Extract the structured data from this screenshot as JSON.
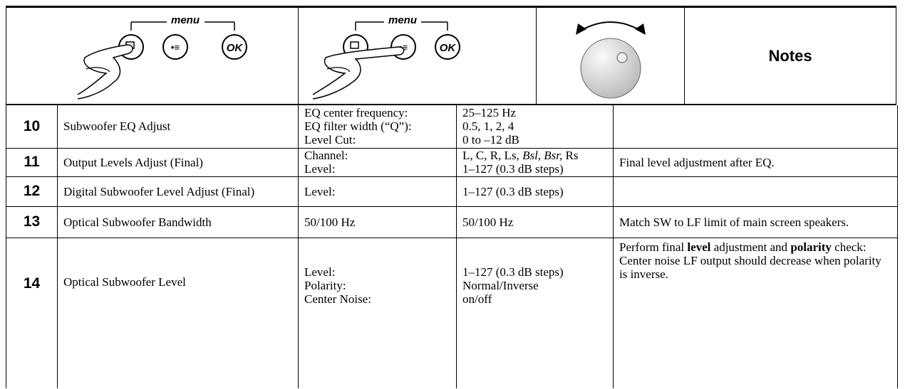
{
  "header": {
    "button_groups": [
      {
        "menu": "menu",
        "ok": "OK"
      },
      {
        "menu": "menu",
        "ok": "OK"
      }
    ],
    "notes": "Notes"
  },
  "rows": [
    {
      "step": 10,
      "name": "Subwoofer EQ Adjust",
      "parameters": [
        "EQ center frequency:",
        "EQ filter width (“Q”):",
        "Level Cut:"
      ],
      "values": [
        "25–125 Hz",
        "0.5, 1, 2, 4",
        "0 to –12 dB"
      ]
    },
    {
      "step": 11,
      "name": "Output Levels Adjust (Final)",
      "parameters": [
        "Channel:",
        "Level:"
      ],
      "values": [
        [
          "L, C, R, Ls, ",
          {
            "text": "Bsl, Bsr,",
            "style": "italic"
          },
          " Rs"
        ],
        "1–127 (0.3 dB steps)"
      ],
      "notes": "Final level adjustment after EQ."
    },
    {
      "step": 12,
      "name": "Digital Subwoofer Level Adjust (Final)",
      "parameters": [
        "Level:"
      ],
      "values": [
        "1–127 (0.3 dB steps)"
      ]
    },
    {
      "step": 13,
      "name": "Optical Subwoofer Bandwidth",
      "parameters": [
        "50/100 Hz"
      ],
      "values": [
        "50/100 Hz"
      ],
      "notes": "Match SW to LF limit of main screen speakers."
    },
    {
      "step": 14,
      "name": "Optical Subwoofer Level",
      "parameters": [
        "Level:",
        "Polarity:",
        "Center Noise:"
      ],
      "values": [
        "1–127 (0.3 dB steps)",
        "Normal/Inverse",
        "on/off"
      ],
      "notes": [
        "Perform final ",
        {
          "text": "level",
          "style": "bold"
        },
        " adjustment and ",
        {
          "text": "polarity",
          "style": "bold"
        },
        " check: Center noise LF output should decrease when polarity is inverse."
      ]
    }
  ]
}
